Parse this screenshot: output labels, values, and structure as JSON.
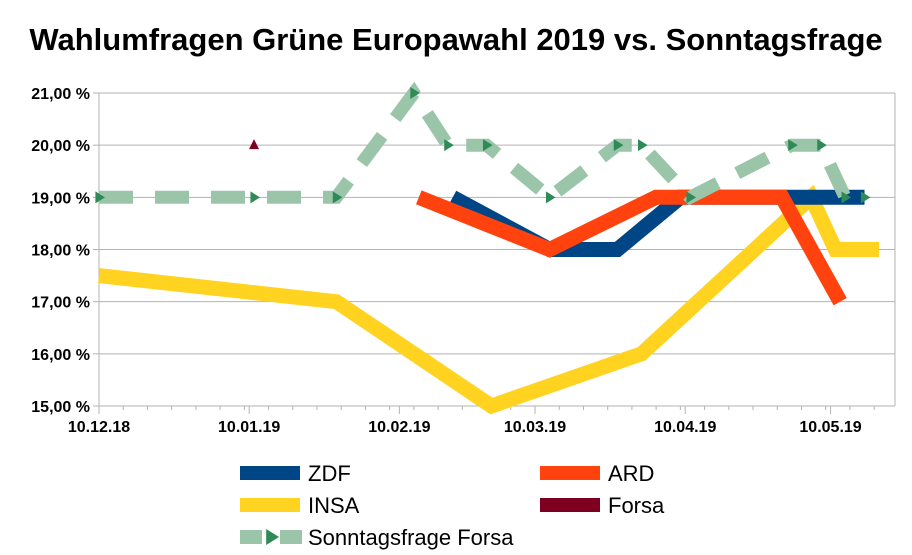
{
  "chart_data": {
    "type": "line",
    "title": "Wahlumfragen Grüne Europawahl 2019 vs. Sonntagsfrage",
    "xlabel": "",
    "ylabel": "",
    "ylim": [
      15,
      21
    ],
    "y_ticks": [
      15,
      16,
      17,
      18,
      19,
      20,
      21
    ],
    "y_tick_labels": [
      "15,00 %",
      "16,00 %",
      "17,00 %",
      "18,00 %",
      "19,00 %",
      "20,00 %",
      "21,00 %"
    ],
    "x_range_days": [
      0,
      161
    ],
    "x_ticks": [
      {
        "day": 0,
        "label": "10.12.18"
      },
      {
        "day": 31,
        "label": "10.01.19"
      },
      {
        "day": 62,
        "label": "10.02.19"
      },
      {
        "day": 90,
        "label": "10.03.19"
      },
      {
        "day": 121,
        "label": "10.04.19"
      },
      {
        "day": 151,
        "label": "10.05.19"
      }
    ],
    "grid": true,
    "legend_position": "bottom",
    "series": [
      {
        "name": "ZDF",
        "color": "#004586",
        "style": "solid",
        "points": [
          [
            73,
            19
          ],
          [
            93,
            18
          ],
          [
            107,
            18
          ],
          [
            120,
            19
          ],
          [
            154,
            19
          ],
          [
            158,
            19
          ]
        ]
      },
      {
        "name": "ARD",
        "color": "#ff420e",
        "style": "solid",
        "points": [
          [
            66,
            19
          ],
          [
            93,
            18
          ],
          [
            115,
            19
          ],
          [
            141,
            19
          ],
          [
            153,
            17
          ]
        ]
      },
      {
        "name": "INSA",
        "color": "#ffd320",
        "style": "solid",
        "points": [
          [
            0,
            17.5
          ],
          [
            49,
            17
          ],
          [
            81,
            15
          ],
          [
            112,
            16
          ],
          [
            147,
            19
          ],
          [
            152,
            18
          ],
          [
            161,
            18
          ]
        ]
      },
      {
        "name": "Forsa",
        "color": "#7e0021",
        "style": "marker",
        "points": [
          [
            32,
            20
          ]
        ]
      },
      {
        "name": "Sonntagsfrage Forsa",
        "color": "#579d1c",
        "style": "dashed",
        "points": [
          [
            0,
            19
          ],
          [
            32,
            19
          ],
          [
            49,
            19
          ],
          [
            65,
            21
          ],
          [
            72,
            20
          ],
          [
            80,
            20
          ],
          [
            93,
            19
          ],
          [
            107,
            20
          ],
          [
            112,
            20
          ],
          [
            122,
            19
          ],
          [
            143,
            20
          ],
          [
            149,
            20
          ],
          [
            154,
            19
          ],
          [
            158,
            19
          ]
        ]
      }
    ]
  }
}
